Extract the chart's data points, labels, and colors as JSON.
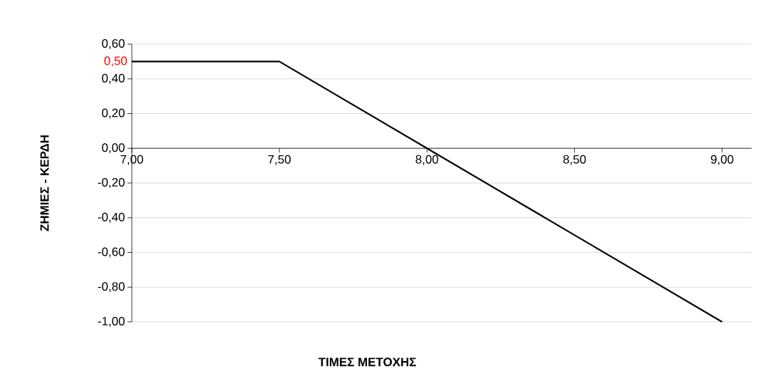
{
  "chart_data": {
    "type": "line",
    "xlabel": "ΤΙΜΕΣ ΜΕΤΟΧΗΣ",
    "ylabel": "ΖΗΜΙΕΣ - ΚΕΡΔΗ",
    "x": [
      7,
      7.5,
      8,
      8.5,
      9
    ],
    "series": [
      {
        "color": "#000000",
        "values": [
          0.5,
          0.5,
          0,
          -0.5,
          -1
        ]
      }
    ],
    "xlim": [
      7,
      9.1
    ],
    "ylim": [
      -1,
      0.6
    ],
    "xticks": [
      {
        "value": 7,
        "label": "7,00"
      },
      {
        "value": 7.5,
        "label": "7,50"
      },
      {
        "value": 8,
        "label": "8,00"
      },
      {
        "value": 8.5,
        "label": "8,50"
      },
      {
        "value": 9,
        "label": "9,00"
      }
    ],
    "yticks": [
      {
        "value": -1,
        "label": "-1,00"
      },
      {
        "value": -0.8,
        "label": "-0,80"
      },
      {
        "value": -0.6,
        "label": "-0,60"
      },
      {
        "value": -0.4,
        "label": "-0,40"
      },
      {
        "value": -0.2,
        "label": "-0,20"
      },
      {
        "value": 0,
        "label": "0,00"
      },
      {
        "value": 0.2,
        "label": "0,20"
      },
      {
        "value": 0.4,
        "label": "0,40"
      },
      {
        "value": 0.6,
        "label": "0,60"
      }
    ],
    "annotations": [
      {
        "text": "0,50",
        "x": 7,
        "y": 0.5
      }
    ],
    "grid": "y",
    "marker": "none",
    "line_style": "solid"
  }
}
